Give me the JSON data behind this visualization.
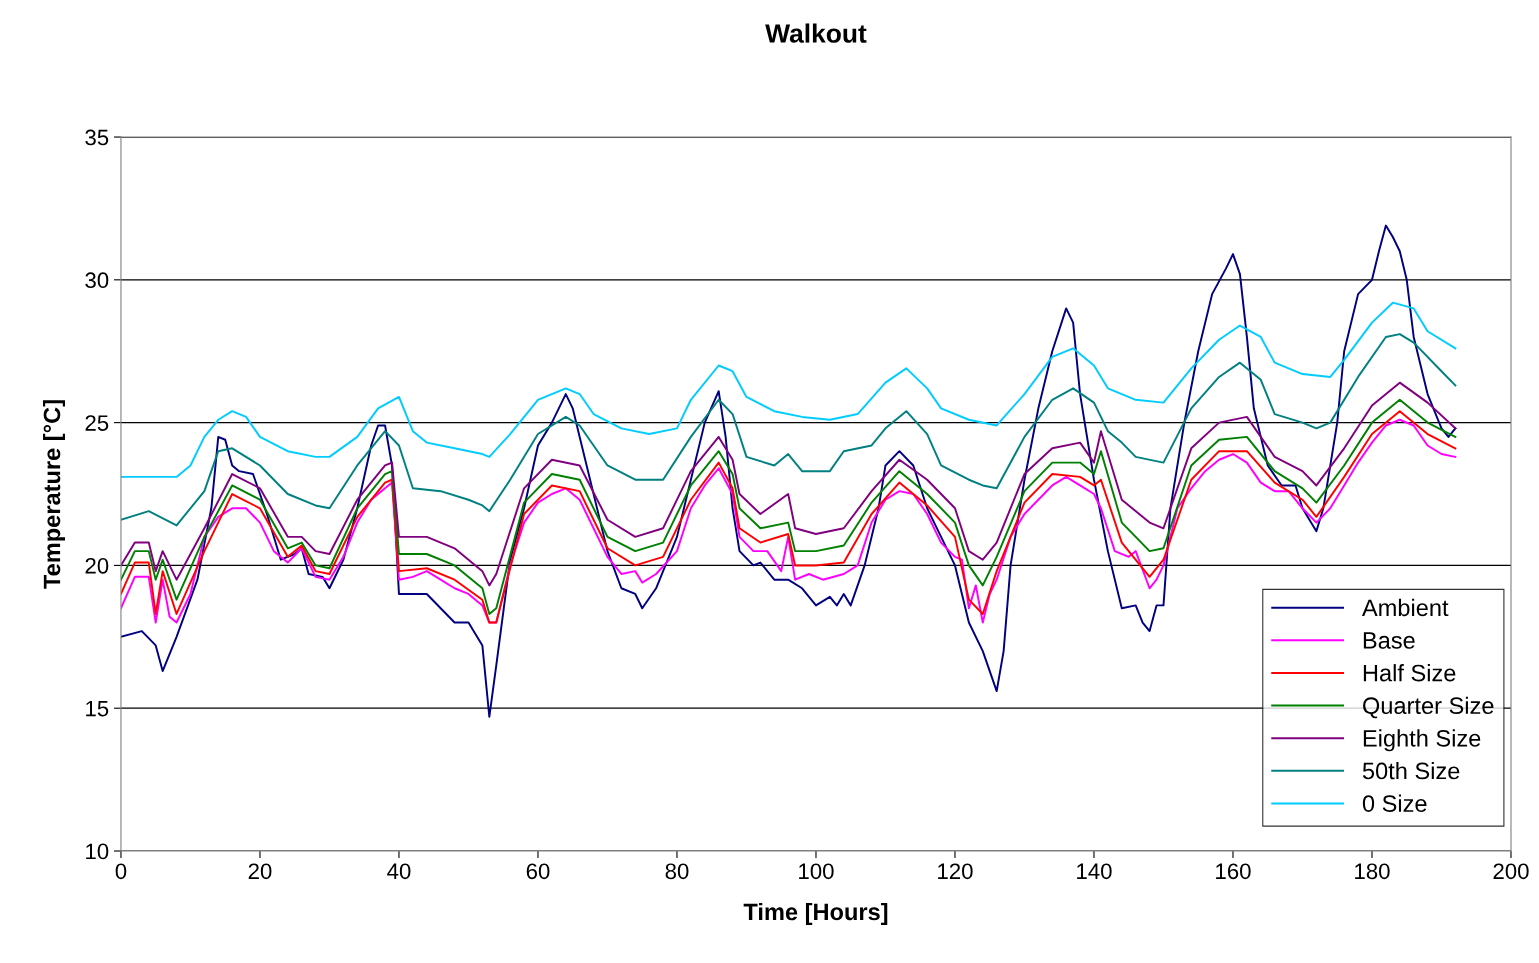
{
  "chart_data": {
    "type": "line",
    "title": "Walkout",
    "xlabel": "Time [Hours]",
    "ylabel": "Temperature [°C]",
    "xlim": [
      0,
      200
    ],
    "xticks": [
      0,
      20,
      40,
      60,
      80,
      100,
      120,
      140,
      160,
      180,
      200
    ],
    "ylim": [
      10,
      35
    ],
    "yticks": [
      10,
      15,
      20,
      25,
      30,
      35
    ],
    "grid": "y",
    "legend": "bottom right",
    "marker": "none",
    "line_style": "solid",
    "series": [
      {
        "name": "Ambient",
        "color": "#000080",
        "x": [
          0,
          3,
          5,
          6,
          8,
          11,
          13,
          14,
          15,
          16,
          17,
          19,
          21,
          23,
          25,
          26,
          27,
          29,
          30,
          32,
          34,
          36,
          37,
          38,
          39,
          40,
          42,
          44,
          46,
          48,
          50,
          52,
          53,
          54,
          56,
          58,
          60,
          62,
          64,
          65,
          66,
          68,
          70,
          72,
          74,
          75,
          77,
          80,
          82,
          84,
          86,
          87,
          88,
          89,
          91,
          92,
          94,
          96,
          98,
          100,
          102,
          103,
          104,
          105,
          107,
          109,
          110,
          112,
          114,
          116,
          118,
          120,
          121,
          122,
          124,
          126,
          127,
          128,
          130,
          132,
          134,
          136,
          137,
          138,
          140,
          142,
          144,
          146,
          147,
          148,
          149,
          150,
          151,
          153,
          155,
          157,
          159,
          160,
          161,
          162,
          163,
          165,
          167,
          169,
          170,
          172,
          173,
          175,
          176,
          178,
          180,
          181,
          182,
          183,
          184,
          185,
          186,
          188,
          190,
          191,
          192
        ],
        "values": [
          17.5,
          17.7,
          17.2,
          16.3,
          17.5,
          19.5,
          22,
          24.5,
          24.4,
          23.5,
          23.3,
          23.2,
          21.8,
          20.2,
          20.4,
          20.6,
          19.7,
          19.6,
          19.2,
          20.2,
          22,
          24.2,
          24.9,
          24.9,
          23.5,
          19,
          19,
          19,
          18.5,
          18,
          18,
          17.2,
          14.7,
          16.5,
          20.2,
          22,
          24.2,
          25,
          26,
          25.5,
          24.5,
          22.5,
          20.5,
          19.2,
          19,
          18.5,
          19.2,
          21,
          23,
          25,
          26.1,
          24.5,
          22,
          20.5,
          20,
          20.1,
          19.5,
          19.5,
          19.2,
          18.6,
          18.9,
          18.6,
          19,
          18.6,
          20,
          22,
          23.5,
          24,
          23.5,
          22,
          21,
          20,
          19,
          18,
          17,
          15.6,
          17,
          20,
          23,
          25.5,
          27.5,
          29,
          28.5,
          26,
          23,
          20.5,
          18.5,
          18.6,
          18,
          17.7,
          18.6,
          18.6,
          22,
          25,
          27.5,
          29.5,
          30.4,
          30.9,
          30.2,
          28,
          25.5,
          23.5,
          22.8,
          22.8,
          22,
          21.2,
          22,
          25,
          27.5,
          29.5,
          30,
          31,
          31.9,
          31.5,
          31,
          30,
          28,
          26,
          24.8,
          24.5,
          24.8
        ]
      },
      {
        "name": "Base",
        "color": "#ff00ff",
        "x": [
          0,
          2,
          4,
          5,
          6,
          7,
          8,
          10,
          12,
          14,
          16,
          18,
          20,
          22,
          24,
          26,
          28,
          30,
          32,
          34,
          36,
          38,
          39,
          40,
          42,
          44,
          46,
          48,
          50,
          52,
          53,
          54,
          56,
          58,
          60,
          62,
          64,
          66,
          68,
          70,
          72,
          74,
          75,
          77,
          80,
          82,
          84,
          86,
          88,
          89,
          91,
          93,
          95,
          96,
          97,
          99,
          101,
          104,
          106,
          108,
          110,
          112,
          114,
          116,
          118,
          120,
          121,
          122,
          123,
          124,
          125,
          126,
          128,
          130,
          132,
          134,
          136,
          138,
          140,
          141,
          143,
          145,
          146,
          148,
          149,
          150,
          152,
          154,
          156,
          158,
          160,
          162,
          164,
          166,
          168,
          170,
          172,
          174,
          176,
          178,
          180,
          182,
          184,
          186,
          188,
          190,
          192
        ],
        "values": [
          18.5,
          19.6,
          19.6,
          18,
          19.5,
          18.2,
          18,
          19,
          21,
          21.7,
          22,
          22,
          21.5,
          20.5,
          20.1,
          20.6,
          19.6,
          19.5,
          20.3,
          21.5,
          22.3,
          22.7,
          22.9,
          19.5,
          19.6,
          19.8,
          19.5,
          19.2,
          19,
          18.6,
          18,
          18,
          20,
          21.5,
          22.2,
          22.5,
          22.7,
          22.3,
          21.3,
          20.3,
          19.7,
          19.8,
          19.4,
          19.7,
          20.5,
          22,
          22.8,
          23.4,
          22.5,
          21,
          20.5,
          20.5,
          19.8,
          21,
          19.5,
          19.7,
          19.5,
          19.7,
          20,
          21.5,
          22.3,
          22.6,
          22.5,
          21.8,
          20.8,
          20.3,
          20.2,
          18.5,
          19.3,
          18,
          19,
          19.5,
          21,
          21.8,
          22.3,
          22.8,
          23.1,
          22.8,
          22.5,
          22,
          20.5,
          20.3,
          20.5,
          19.2,
          19.5,
          20,
          22,
          22.7,
          23.3,
          23.7,
          23.9,
          23.6,
          22.9,
          22.6,
          22.6,
          22,
          21.5,
          22,
          22.8,
          23.6,
          24.3,
          24.9,
          25.1,
          24.9,
          24.2,
          23.9,
          23.8
        ]
      },
      {
        "name": "Half Size",
        "color": "#ff0000",
        "x": [
          0,
          2,
          4,
          5,
          6,
          8,
          12,
          16,
          20,
          24,
          26,
          28,
          30,
          34,
          38,
          39,
          40,
          44,
          48,
          52,
          53,
          54,
          58,
          62,
          66,
          70,
          74,
          78,
          82,
          86,
          88,
          89,
          92,
          96,
          97,
          100,
          104,
          108,
          112,
          116,
          120,
          122,
          124,
          126,
          130,
          134,
          138,
          140,
          141,
          144,
          148,
          150,
          154,
          158,
          162,
          166,
          170,
          172,
          176,
          180,
          184,
          188,
          192
        ],
        "values": [
          19.0,
          20.1,
          20.1,
          18.3,
          19.8,
          18.3,
          20.5,
          22.5,
          22.0,
          20.3,
          20.7,
          19.8,
          19.7,
          21.7,
          22.9,
          23.0,
          19.8,
          19.9,
          19.5,
          18.8,
          18.0,
          18.0,
          21.8,
          22.8,
          22.6,
          20.6,
          20.0,
          20.3,
          22.3,
          23.6,
          22.7,
          21.3,
          20.8,
          21.1,
          20.0,
          20.0,
          20.1,
          21.8,
          22.9,
          22.1,
          21.0,
          18.8,
          18.3,
          19.8,
          22.2,
          23.2,
          23.1,
          22.8,
          23.0,
          20.8,
          19.6,
          20.2,
          23.0,
          24.0,
          24.0,
          22.9,
          22.3,
          21.7,
          23.1,
          24.6,
          25.4,
          24.6,
          24.1
        ]
      },
      {
        "name": "Quarter Size",
        "color": "#008000",
        "x": [
          0,
          2,
          4,
          5,
          6,
          8,
          12,
          16,
          20,
          24,
          26,
          28,
          30,
          34,
          38,
          39,
          40,
          44,
          48,
          52,
          53,
          54,
          58,
          62,
          66,
          70,
          74,
          78,
          82,
          86,
          88,
          89,
          92,
          96,
          97,
          100,
          104,
          108,
          112,
          116,
          120,
          122,
          124,
          126,
          130,
          134,
          138,
          140,
          141,
          144,
          148,
          150,
          154,
          158,
          162,
          166,
          170,
          172,
          176,
          180,
          184,
          188,
          192
        ],
        "values": [
          19.5,
          20.5,
          20.5,
          19.5,
          20.2,
          18.8,
          21.0,
          22.8,
          22.3,
          20.6,
          20.8,
          20.0,
          19.9,
          22.0,
          23.2,
          23.3,
          20.4,
          20.4,
          20.0,
          19.2,
          18.3,
          18.5,
          22.2,
          23.2,
          23.0,
          21.0,
          20.5,
          20.8,
          22.8,
          24.0,
          23.2,
          22.0,
          21.3,
          21.5,
          20.5,
          20.5,
          20.7,
          22.2,
          23.3,
          22.5,
          21.5,
          20.0,
          19.3,
          20.3,
          22.6,
          23.6,
          23.6,
          23.2,
          24.0,
          21.5,
          20.5,
          20.6,
          23.5,
          24.4,
          24.5,
          23.3,
          22.7,
          22.2,
          23.5,
          25.0,
          25.8,
          25.0,
          24.5
        ]
      },
      {
        "name": "Eighth Size",
        "color": "#800080",
        "x": [
          0,
          2,
          4,
          5,
          6,
          8,
          12,
          16,
          20,
          24,
          26,
          28,
          30,
          34,
          38,
          39,
          40,
          44,
          48,
          52,
          53,
          54,
          58,
          62,
          66,
          70,
          74,
          78,
          82,
          86,
          88,
          89,
          92,
          96,
          97,
          100,
          104,
          108,
          112,
          116,
          120,
          122,
          124,
          126,
          130,
          134,
          138,
          140,
          141,
          144,
          148,
          150,
          154,
          158,
          162,
          166,
          170,
          172,
          176,
          180,
          184,
          188,
          192
        ],
        "values": [
          20.0,
          20.8,
          20.8,
          19.8,
          20.5,
          19.5,
          21.3,
          23.2,
          22.7,
          21.0,
          21.0,
          20.5,
          20.4,
          22.3,
          23.5,
          23.6,
          21.0,
          21.0,
          20.6,
          19.8,
          19.3,
          19.7,
          22.7,
          23.7,
          23.5,
          21.6,
          21.0,
          21.3,
          23.3,
          24.5,
          23.7,
          22.5,
          21.8,
          22.5,
          21.3,
          21.1,
          21.3,
          22.6,
          23.7,
          23.0,
          22.0,
          20.5,
          20.2,
          20.8,
          23.2,
          24.1,
          24.3,
          23.6,
          24.7,
          22.3,
          21.5,
          21.3,
          24.1,
          25.0,
          25.2,
          23.8,
          23.3,
          22.8,
          24.1,
          25.6,
          26.4,
          25.7,
          24.8
        ]
      },
      {
        "name": "50th Size",
        "color": "#008080",
        "x": [
          0,
          4,
          8,
          12,
          14,
          16,
          20,
          24,
          28,
          30,
          34,
          38,
          40,
          42,
          46,
          50,
          52,
          53,
          56,
          60,
          64,
          66,
          70,
          74,
          78,
          82,
          86,
          88,
          90,
          94,
          96,
          98,
          100,
          102,
          104,
          108,
          110,
          113,
          116,
          118,
          122,
          124,
          126,
          130,
          134,
          137,
          140,
          142,
          144,
          146,
          150,
          154,
          158,
          161,
          164,
          166,
          170,
          172,
          174,
          178,
          182,
          184,
          186,
          190,
          192
        ],
        "values": [
          21.6,
          21.9,
          21.4,
          22.6,
          24.0,
          24.1,
          23.5,
          22.5,
          22.1,
          22.0,
          23.5,
          24.7,
          24.2,
          22.7,
          22.6,
          22.3,
          22.1,
          21.9,
          23.0,
          24.6,
          25.2,
          24.9,
          23.5,
          23.0,
          23.0,
          24.5,
          25.8,
          25.3,
          23.8,
          23.5,
          23.9,
          23.3,
          23.3,
          23.3,
          24.0,
          24.2,
          24.8,
          25.4,
          24.6,
          23.5,
          23.0,
          22.8,
          22.7,
          24.5,
          25.8,
          26.2,
          25.7,
          24.7,
          24.3,
          23.8,
          23.6,
          25.5,
          26.6,
          27.1,
          26.5,
          25.3,
          25.0,
          24.8,
          25.0,
          26.6,
          28.0,
          28.1,
          27.8,
          26.8,
          26.3
        ]
      },
      {
        "name": "0 Size",
        "color": "#00ccff",
        "x": [
          0,
          4,
          8,
          10,
          12,
          14,
          16,
          18,
          20,
          24,
          28,
          30,
          34,
          37,
          40,
          42,
          44,
          48,
          52,
          53,
          56,
          60,
          64,
          66,
          68,
          72,
          76,
          80,
          82,
          86,
          88,
          90,
          94,
          98,
          102,
          106,
          110,
          113,
          116,
          118,
          122,
          126,
          130,
          134,
          137,
          140,
          142,
          146,
          150,
          154,
          158,
          161,
          164,
          166,
          170,
          174,
          176,
          180,
          183,
          186,
          188,
          192
        ],
        "values": [
          23.1,
          23.1,
          23.1,
          23.5,
          24.5,
          25.1,
          25.4,
          25.2,
          24.5,
          24.0,
          23.8,
          23.8,
          24.5,
          25.5,
          25.9,
          24.7,
          24.3,
          24.1,
          23.9,
          23.8,
          24.6,
          25.8,
          26.2,
          26.0,
          25.3,
          24.8,
          24.6,
          24.8,
          25.8,
          27.0,
          26.8,
          25.9,
          25.4,
          25.2,
          25.1,
          25.3,
          26.4,
          26.9,
          26.2,
          25.5,
          25.1,
          24.9,
          26.0,
          27.3,
          27.6,
          27.0,
          26.2,
          25.8,
          25.7,
          26.9,
          27.9,
          28.4,
          28.0,
          27.1,
          26.7,
          26.6,
          27.2,
          28.5,
          29.2,
          29.0,
          28.2,
          27.6
        ]
      }
    ]
  }
}
